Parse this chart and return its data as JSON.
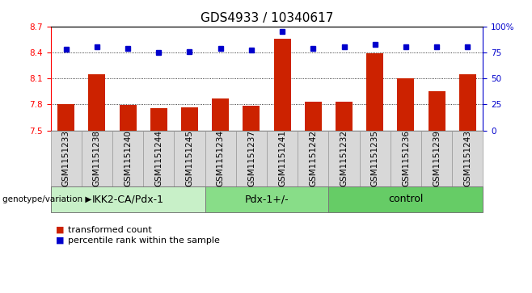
{
  "title": "GDS4933 / 10340617",
  "samples": [
    "GSM1151233",
    "GSM1151238",
    "GSM1151240",
    "GSM1151244",
    "GSM1151245",
    "GSM1151234",
    "GSM1151237",
    "GSM1151241",
    "GSM1151242",
    "GSM1151232",
    "GSM1151235",
    "GSM1151236",
    "GSM1151239",
    "GSM1151243"
  ],
  "red_values": [
    7.8,
    8.15,
    7.79,
    7.76,
    7.77,
    7.87,
    7.78,
    8.56,
    7.83,
    7.83,
    8.39,
    8.1,
    7.95,
    8.15
  ],
  "blue_values": [
    78,
    80,
    79,
    75,
    76,
    79,
    77,
    95,
    79,
    80,
    83,
    80,
    80,
    80
  ],
  "groups": [
    {
      "label": "IKK2-CA/Pdx-1",
      "start": 0,
      "end": 5,
      "color": "#c8f0c8"
    },
    {
      "label": "Pdx-1+/-",
      "start": 5,
      "end": 9,
      "color": "#88dd88"
    },
    {
      "label": "control",
      "start": 9,
      "end": 14,
      "color": "#66cc66"
    }
  ],
  "ylim_left": [
    7.5,
    8.7
  ],
  "ylim_right": [
    0,
    100
  ],
  "yticks_left": [
    7.5,
    7.8,
    8.1,
    8.4,
    8.7
  ],
  "yticks_right": [
    0,
    25,
    50,
    75,
    100
  ],
  "ytick_labels_right": [
    "0",
    "25",
    "50",
    "75",
    "100%"
  ],
  "bar_color": "#cc2200",
  "dot_color": "#0000cc",
  "bar_bottom": 7.5,
  "legend_labels": [
    "transformed count",
    "percentile rank within the sample"
  ],
  "genotype_label": "genotype/variation",
  "title_fontsize": 11,
  "tick_label_fontsize": 7.5,
  "group_label_fontsize": 9,
  "legend_fontsize": 8
}
